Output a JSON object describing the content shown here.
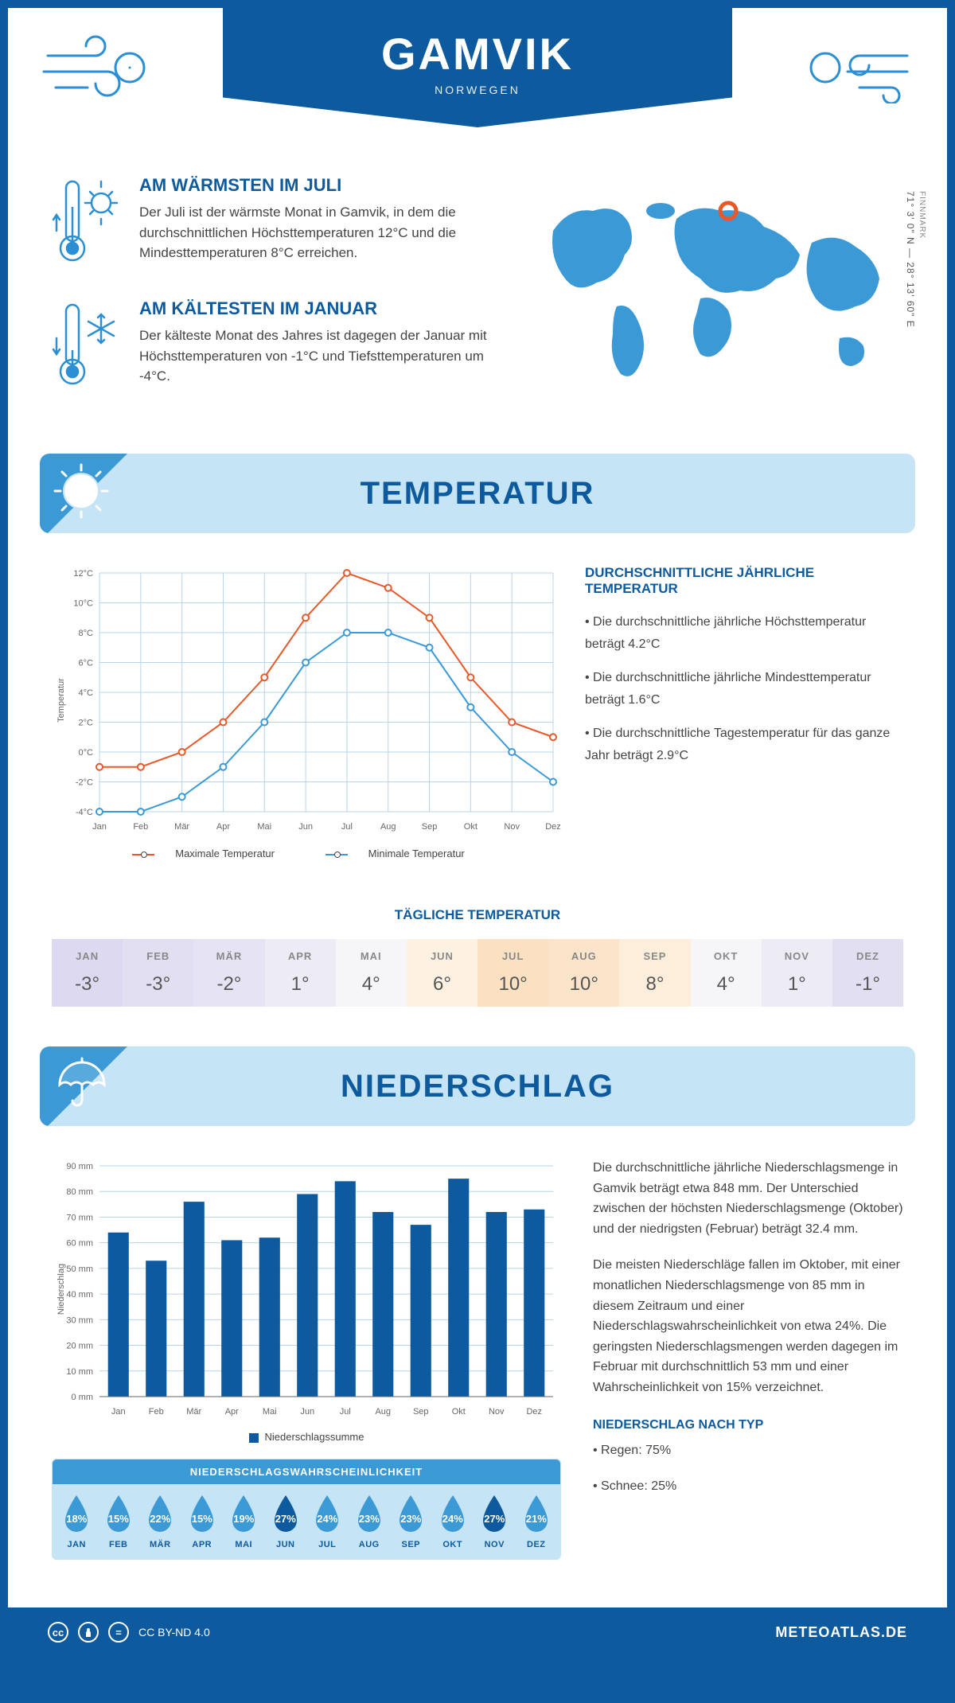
{
  "header": {
    "title": "GAMVIK",
    "subtitle": "NORWEGEN"
  },
  "intro": {
    "warm": {
      "title": "AM WÄRMSTEN IM JULI",
      "text": "Der Juli ist der wärmste Monat in Gamvik, in dem die durchschnittlichen Höchsttemperaturen 12°C und die Mindesttemperaturen 8°C erreichen."
    },
    "cold": {
      "title": "AM KÄLTESTEN IM JANUAR",
      "text": "Der kälteste Monat des Jahres ist dagegen der Januar mit Höchsttemperaturen von -1°C und Tiefsttemperaturen um -4°C."
    },
    "region": "FINNMARK",
    "coords": "71° 3' 0\" N — 28° 13' 60\" E"
  },
  "temperature": {
    "section_title": "TEMPERATUR",
    "chart": {
      "type": "line",
      "months": [
        "Jan",
        "Feb",
        "Mär",
        "Apr",
        "Mai",
        "Jun",
        "Jul",
        "Aug",
        "Sep",
        "Okt",
        "Nov",
        "Dez"
      ],
      "max_values": [
        -1,
        -1,
        0,
        2,
        5,
        9,
        12,
        11,
        9,
        5,
        2,
        1
      ],
      "min_values": [
        -4,
        -4,
        -3,
        -1,
        2,
        6,
        8,
        8,
        7,
        3,
        0,
        -2
      ],
      "max_color": "#e8592a",
      "min_color": "#3b9ad6",
      "ylim": [
        -4,
        12
      ],
      "ytick_step": 2,
      "y_label": "Temperatur",
      "grid_color": "#b8d4e8",
      "background_color": "#ffffff",
      "line_width": 2,
      "marker": "circle"
    },
    "legend_max": "Maximale Temperatur",
    "legend_min": "Minimale Temperatur",
    "info_title": "DURCHSCHNITTLICHE JÄHRLICHE TEMPERATUR",
    "info_1": "• Die durchschnittliche jährliche Höchsttemperatur beträgt 4.2°C",
    "info_2": "• Die durchschnittliche jährliche Mindesttemperatur beträgt 1.6°C",
    "info_3": "• Die durchschnittliche Tagestemperatur für das ganze Jahr beträgt 2.9°C",
    "daily_title": "TÄGLICHE TEMPERATUR",
    "daily": {
      "months": [
        "JAN",
        "FEB",
        "MÄR",
        "APR",
        "MAI",
        "JUN",
        "JUL",
        "AUG",
        "SEP",
        "OKT",
        "NOV",
        "DEZ"
      ],
      "values": [
        "-3°",
        "-3°",
        "-2°",
        "1°",
        "4°",
        "6°",
        "10°",
        "10°",
        "8°",
        "4°",
        "1°",
        "-1°"
      ],
      "colors": [
        "#dcd9f0",
        "#e2dff2",
        "#e6e3f4",
        "#ecebf6",
        "#f6f6f8",
        "#fdf2e2",
        "#fce0c2",
        "#fce4ca",
        "#fdeedb",
        "#f6f6f8",
        "#ecebf6",
        "#e2dff2"
      ]
    }
  },
  "precip": {
    "section_title": "NIEDERSCHLAG",
    "chart": {
      "type": "bar",
      "months": [
        "Jan",
        "Feb",
        "Mär",
        "Apr",
        "Mai",
        "Jun",
        "Jul",
        "Aug",
        "Sep",
        "Okt",
        "Nov",
        "Dez"
      ],
      "values": [
        64,
        53,
        76,
        61,
        62,
        79,
        84,
        72,
        67,
        85,
        72,
        73
      ],
      "bar_color": "#0d5a9e",
      "ylim": [
        0,
        90
      ],
      "ytick_step": 10,
      "y_label": "Niederschlag",
      "grid_color": "#b8d4e8",
      "bar_width": 0.55
    },
    "legend": "Niederschlagssumme",
    "para1": "Die durchschnittliche jährliche Niederschlagsmenge in Gamvik beträgt etwa 848 mm. Der Unterschied zwischen der höchsten Niederschlagsmenge (Oktober) und der niedrigsten (Februar) beträgt 32.4 mm.",
    "para2": "Die meisten Niederschläge fallen im Oktober, mit einer monatlichen Niederschlagsmenge von 85 mm in diesem Zeitraum und einer Niederschlagswahrscheinlichkeit von etwa 24%. Die geringsten Niederschlagsmengen werden dagegen im Februar mit durchschnittlich 53 mm und einer Wahrscheinlichkeit von 15% verzeichnet.",
    "type_title": "NIEDERSCHLAG NACH TYP",
    "type_rain": "• Regen: 75%",
    "type_snow": "• Schnee: 25%",
    "prob": {
      "title": "NIEDERSCHLAGSWAHRSCHEINLICHKEIT",
      "months": [
        "JAN",
        "FEB",
        "MÄR",
        "APR",
        "MAI",
        "JUN",
        "JUL",
        "AUG",
        "SEP",
        "OKT",
        "NOV",
        "DEZ"
      ],
      "values": [
        "18%",
        "15%",
        "22%",
        "15%",
        "19%",
        "27%",
        "24%",
        "23%",
        "23%",
        "24%",
        "27%",
        "21%"
      ],
      "colors": [
        "#3b9ad6",
        "#3b9ad6",
        "#3b9ad6",
        "#3b9ad6",
        "#3b9ad6",
        "#0d5a9e",
        "#3b9ad6",
        "#3b9ad6",
        "#3b9ad6",
        "#3b9ad6",
        "#0d5a9e",
        "#3b9ad6"
      ]
    }
  },
  "footer": {
    "license": "CC BY-ND 4.0",
    "site": "METEOATLAS.DE"
  }
}
